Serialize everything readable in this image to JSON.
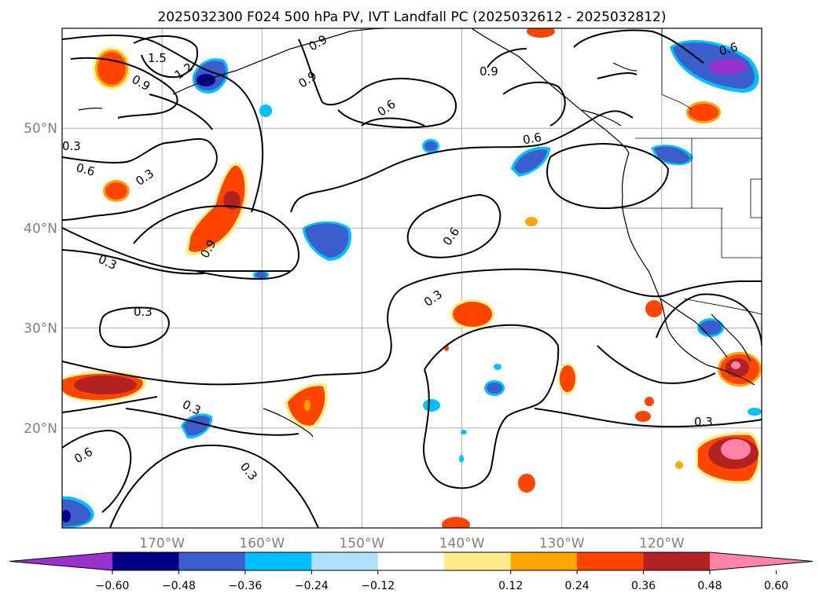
{
  "title": "2025032300 F024 500 hPa PV, IVT Landfall PC (2025032612 - 2025032812)",
  "map": {
    "lon_min": -180,
    "lon_max": -110,
    "lat_min": 10,
    "lat_max": 60,
    "gridlines": true,
    "lon_ticks": [
      {
        "value": -170,
        "label": "170°W"
      },
      {
        "value": -160,
        "label": "160°W"
      },
      {
        "value": -150,
        "label": "150°W"
      },
      {
        "value": -140,
        "label": "140°W"
      },
      {
        "value": -130,
        "label": "130°W"
      },
      {
        "value": -120,
        "label": "120°W"
      }
    ],
    "lat_ticks": [
      {
        "value": 20,
        "label": "20°N"
      },
      {
        "value": 30,
        "label": "30°N"
      },
      {
        "value": 40,
        "label": "40°N"
      },
      {
        "value": 50,
        "label": "50°N"
      }
    ],
    "tick_color": "#808080"
  },
  "contour_labels": [
    "1.5",
    "1.2",
    "0.9",
    "0.9",
    "0.9",
    "0.9",
    "0.9",
    "0.6",
    "0.6",
    "0.6",
    "0.6",
    "0.6",
    "0.6",
    "0.3",
    "0.3",
    "0.3",
    "0.3",
    "0.3",
    "0.3",
    "0.3",
    "0.3"
  ],
  "colorbar": {
    "extend": "both",
    "tick_labels": [
      "−0.60",
      "−0.48",
      "−0.36",
      "−0.24",
      "−0.12",
      "0.12",
      "0.24",
      "0.36",
      "0.48",
      "0.60"
    ],
    "colors": [
      "#9932cc",
      "#00008b",
      "#3a5fcd",
      "#00bfff",
      "#b0e2ff",
      "#ffffff",
      "#ffec8b",
      "#ffa500",
      "#ff4500",
      "#b22222",
      "#ff82ab"
    ]
  }
}
